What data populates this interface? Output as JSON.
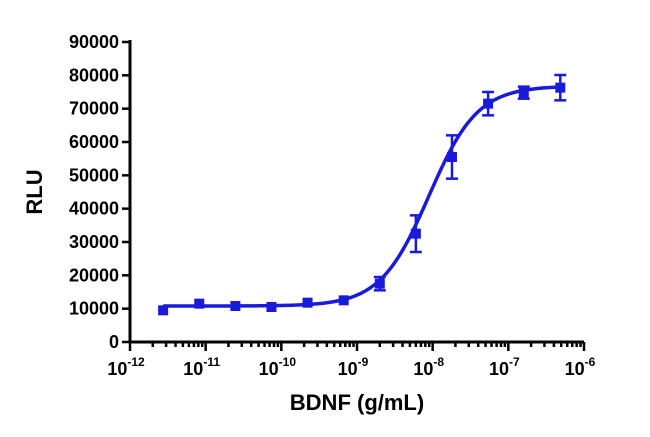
{
  "chart_data": {
    "type": "scatter",
    "xlabel": "BDNF (g/mL)",
    "ylabel": "RLU",
    "x_scale": "log",
    "xlim": [
      1e-12,
      1e-06
    ],
    "ylim": [
      0,
      90000
    ],
    "y_ticks": [
      "0",
      "10000",
      "20000",
      "30000",
      "40000",
      "50000",
      "60000",
      "70000",
      "80000",
      "90000"
    ],
    "x_ticks": [
      {
        "base": "10",
        "exp": "-12"
      },
      {
        "base": "10",
        "exp": "-11"
      },
      {
        "base": "10",
        "exp": "-10"
      },
      {
        "base": "10",
        "exp": "-9"
      },
      {
        "base": "10",
        "exp": "-8"
      },
      {
        "base": "10",
        "exp": "-7"
      },
      {
        "base": "10",
        "exp": "-6"
      }
    ],
    "color": "#1a1adb",
    "grid": false,
    "series": [
      {
        "points": [
          {
            "x": 2.74e-12,
            "y": 9500,
            "err": 500
          },
          {
            "x": 8.23e-12,
            "y": 11500,
            "err": 600
          },
          {
            "x": 2.47e-11,
            "y": 10800,
            "err": 500
          },
          {
            "x": 7.41e-11,
            "y": 10500,
            "err": 500
          },
          {
            "x": 2.22e-10,
            "y": 11800,
            "err": 500
          },
          {
            "x": 6.67e-10,
            "y": 12500,
            "err": 600
          },
          {
            "x": 2e-09,
            "y": 17500,
            "err": 2000
          },
          {
            "x": 6e-09,
            "y": 32500,
            "err": 5500
          },
          {
            "x": 1.8e-08,
            "y": 55500,
            "err": 6500
          },
          {
            "x": 5.4e-08,
            "y": 71500,
            "err": 3500
          },
          {
            "x": 1.6e-07,
            "y": 74800,
            "err": 1800
          },
          {
            "x": 4.86e-07,
            "y": 76300,
            "err": 3800
          }
        ]
      }
    ],
    "fit": {
      "bottom": 10800,
      "top": 76800,
      "log_ec50": -8.05,
      "hill_slope": 1.35
    }
  }
}
